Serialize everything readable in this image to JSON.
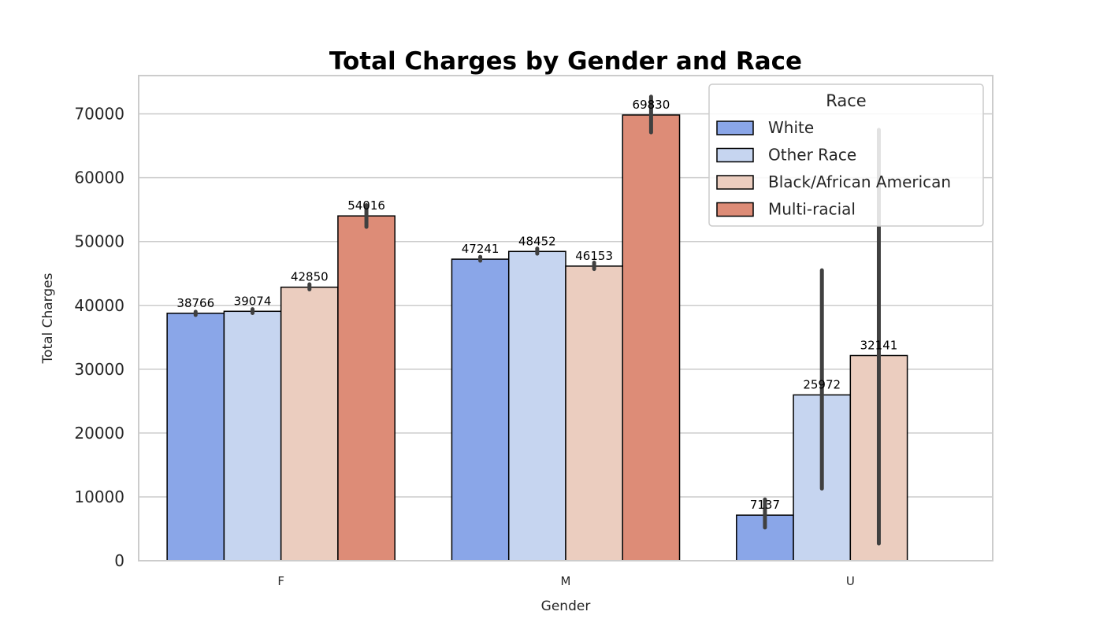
{
  "chart_data": {
    "type": "bar",
    "title": "Total Charges by Gender and Race",
    "xlabel": "Gender",
    "ylabel": "Total Charges",
    "categories": [
      "F",
      "M",
      "U"
    ],
    "series": [
      {
        "name": "White",
        "color": "#8aa6e8",
        "values": [
          38766,
          47241,
          7137
        ],
        "error": [
          [
            38500,
            39000
          ],
          [
            47000,
            47600
          ],
          [
            5200,
            9600
          ]
        ]
      },
      {
        "name": "Other Race",
        "color": "#c6d5f0",
        "values": [
          39074,
          48452,
          25972
        ],
        "error": [
          [
            38800,
            39400
          ],
          [
            48100,
            48900
          ],
          [
            11300,
            45500
          ]
        ]
      },
      {
        "name": "Black/African American",
        "color": "#ebcdbf",
        "values": [
          42850,
          46153,
          32141
        ],
        "error": [
          [
            42500,
            43300
          ],
          [
            45700,
            46700
          ],
          [
            2700,
            67500
          ]
        ]
      },
      {
        "name": "Multi-racial",
        "color": "#dd8c77",
        "values": [
          54016,
          69830,
          null
        ],
        "error": [
          [
            52300,
            55700
          ],
          [
            67100,
            72700
          ],
          null
        ]
      }
    ],
    "ylim": [
      0,
      76000
    ],
    "yticks": [
      "0",
      "10000",
      "20000",
      "30000",
      "40000",
      "50000",
      "60000",
      "70000"
    ],
    "value_labels": [
      [
        "38766",
        "47241",
        "7137"
      ],
      [
        "39074",
        "48452",
        "25972"
      ],
      [
        "42850",
        "46153",
        "32141"
      ],
      [
        "54016",
        "69830",
        ""
      ]
    ],
    "grid": true,
    "legend_title": "Race",
    "legend_position": "top-right"
  }
}
